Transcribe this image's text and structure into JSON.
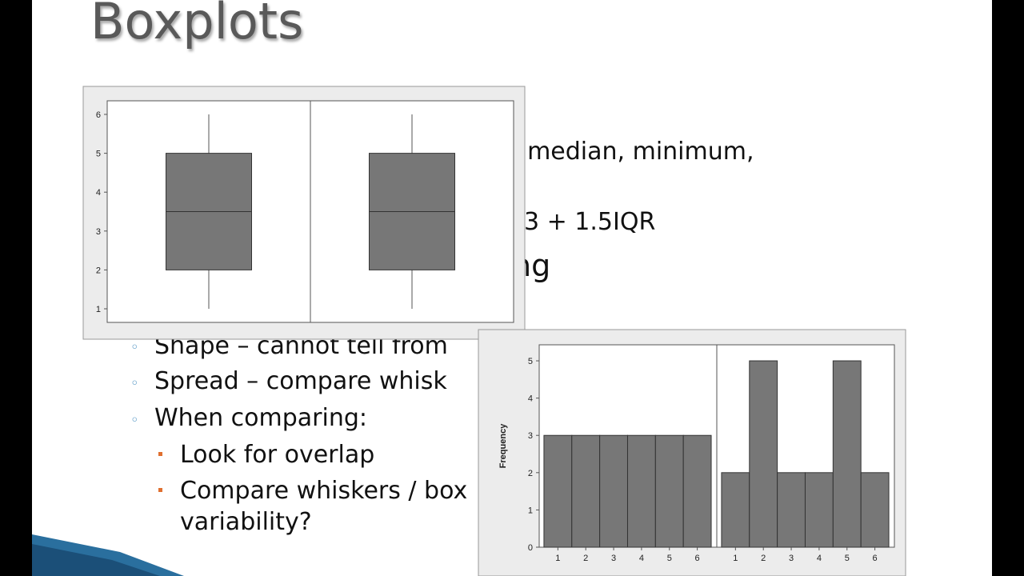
{
  "slide": {
    "title": "Boxplots",
    "fragments": [
      ", median, minimum,",
      "3 + 1.5IQR",
      "ng"
    ],
    "items": [
      "Shape – cannot tell from",
      "Spread – compare whisk",
      "When comparing:",
      "Look for overlap",
      "Compare whiskers / box",
      "variability?"
    ]
  },
  "chart_data": [
    {
      "type": "box",
      "panels": [
        {
          "min": 1,
          "q1": 2,
          "median": 3.5,
          "q3": 5,
          "max": 6
        },
        {
          "min": 1,
          "q1": 2,
          "median": 3.5,
          "q3": 5,
          "max": 6
        }
      ],
      "color": "#777777",
      "ylim": [
        0.65,
        6.35
      ],
      "yticks": [
        1,
        2,
        3,
        4,
        5,
        6
      ]
    },
    {
      "type": "histogram",
      "ylabel": "Frequency",
      "color": "#777777",
      "panels": [
        {
          "bins": [
            0.5,
            1.5,
            2.5,
            3.5,
            4.5,
            5.5,
            6.5
          ],
          "values": [
            3,
            3,
            3,
            3,
            3,
            3
          ]
        },
        {
          "bins": [
            0.5,
            1.5,
            2.5,
            3.5,
            4.5,
            5.5,
            6.5
          ],
          "values": [
            2,
            5,
            2,
            2,
            5,
            2
          ]
        }
      ],
      "xlim": [
        0.33,
        6.7
      ],
      "xticks": [
        1,
        2,
        3,
        4,
        5,
        6
      ],
      "ylim": [
        0,
        5.43
      ],
      "yticks": [
        0,
        1,
        2,
        3,
        4,
        5
      ]
    }
  ]
}
